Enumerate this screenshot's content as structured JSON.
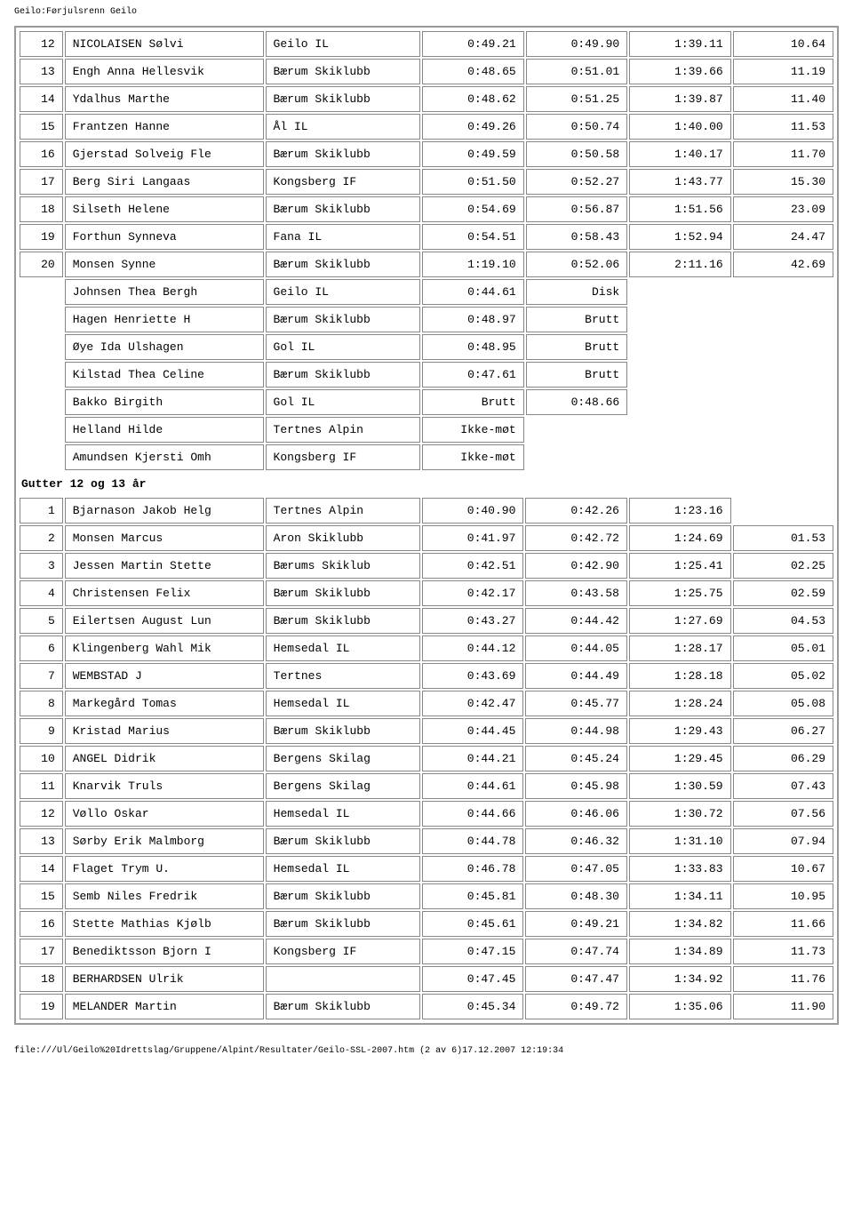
{
  "header": "Geilo:Førjulsrenn Geilo",
  "footer": "file:///Ul/Geilo%20Idrettslag/Gruppene/Alpint/Resultater/Geilo-SSL-2007.htm (2 av 6)17.12.2007 12:19:34",
  "group2_title": "Gutter 12 og 13 år",
  "rows1": [
    {
      "r": "12",
      "n": "NICOLAISEN Sølvi",
      "c": "Geilo IL",
      "t1": "0:49.21",
      "t2": "0:49.90",
      "t3": "1:39.11",
      "t4": "10.64"
    },
    {
      "r": "13",
      "n": "Engh Anna Hellesvik",
      "c": "Bærum Skiklubb",
      "t1": "0:48.65",
      "t2": "0:51.01",
      "t3": "1:39.66",
      "t4": "11.19"
    },
    {
      "r": "14",
      "n": "Ydalhus Marthe",
      "c": "Bærum Skiklubb",
      "t1": "0:48.62",
      "t2": "0:51.25",
      "t3": "1:39.87",
      "t4": "11.40"
    },
    {
      "r": "15",
      "n": "Frantzen Hanne",
      "c": "Ål IL",
      "t1": "0:49.26",
      "t2": "0:50.74",
      "t3": "1:40.00",
      "t4": "11.53"
    },
    {
      "r": "16",
      "n": "Gjerstad Solveig Fle",
      "c": "Bærum Skiklubb",
      "t1": "0:49.59",
      "t2": "0:50.58",
      "t3": "1:40.17",
      "t4": "11.70"
    },
    {
      "r": "17",
      "n": "Berg Siri Langaas",
      "c": "Kongsberg IF",
      "t1": "0:51.50",
      "t2": "0:52.27",
      "t3": "1:43.77",
      "t4": "15.30"
    },
    {
      "r": "18",
      "n": "Silseth Helene",
      "c": "Bærum Skiklubb",
      "t1": "0:54.69",
      "t2": "0:56.87",
      "t3": "1:51.56",
      "t4": "23.09"
    },
    {
      "r": "19",
      "n": "Forthun Synneva",
      "c": "Fana IL",
      "t1": "0:54.51",
      "t2": "0:58.43",
      "t3": "1:52.94",
      "t4": "24.47"
    },
    {
      "r": "20",
      "n": "Monsen Synne",
      "c": "Bærum Skiklubb",
      "t1": "1:19.10",
      "t2": "0:52.06",
      "t3": "2:11.16",
      "t4": "42.69"
    },
    {
      "r": "",
      "n": "Johnsen Thea Bergh",
      "c": "Geilo IL",
      "t1": "0:44.61",
      "t2": "Disk",
      "t3": "",
      "t4": ""
    },
    {
      "r": "",
      "n": "Hagen Henriette H",
      "c": "Bærum Skiklubb",
      "t1": "0:48.97",
      "t2": "Brutt",
      "t3": "",
      "t4": ""
    },
    {
      "r": "",
      "n": "Øye Ida Ulshagen",
      "c": "Gol IL",
      "t1": "0:48.95",
      "t2": "Brutt",
      "t3": "",
      "t4": ""
    },
    {
      "r": "",
      "n": "Kilstad Thea Celine",
      "c": "Bærum Skiklubb",
      "t1": "0:47.61",
      "t2": "Brutt",
      "t3": "",
      "t4": ""
    },
    {
      "r": "",
      "n": "Bakko Birgith",
      "c": "Gol IL",
      "t1": "Brutt",
      "t2": "0:48.66",
      "t3": "",
      "t4": ""
    },
    {
      "r": "",
      "n": "Helland Hilde",
      "c": "Tertnes Alpin",
      "t1": "Ikke-møt",
      "t2": "",
      "t3": "",
      "t4": ""
    },
    {
      "r": "",
      "n": "Amundsen Kjersti Omh",
      "c": "Kongsberg IF",
      "t1": "Ikke-møt",
      "t2": "",
      "t3": "",
      "t4": ""
    }
  ],
  "rows2": [
    {
      "r": "1",
      "n": "Bjarnason Jakob Helg",
      "c": "Tertnes Alpin",
      "t1": "0:40.90",
      "t2": "0:42.26",
      "t3": "1:23.16",
      "t4": ""
    },
    {
      "r": "2",
      "n": "Monsen Marcus",
      "c": "Aron Skiklubb",
      "t1": "0:41.97",
      "t2": "0:42.72",
      "t3": "1:24.69",
      "t4": "01.53"
    },
    {
      "r": "3",
      "n": "Jessen Martin Stette",
      "c": "Bærums Skiklub",
      "t1": "0:42.51",
      "t2": "0:42.90",
      "t3": "1:25.41",
      "t4": "02.25"
    },
    {
      "r": "4",
      "n": "Christensen Felix",
      "c": "Bærum Skiklubb",
      "t1": "0:42.17",
      "t2": "0:43.58",
      "t3": "1:25.75",
      "t4": "02.59"
    },
    {
      "r": "5",
      "n": "Eilertsen August Lun",
      "c": "Bærum Skiklubb",
      "t1": "0:43.27",
      "t2": "0:44.42",
      "t3": "1:27.69",
      "t4": "04.53"
    },
    {
      "r": "6",
      "n": "Klingenberg Wahl Mik",
      "c": "Hemsedal IL",
      "t1": "0:44.12",
      "t2": "0:44.05",
      "t3": "1:28.17",
      "t4": "05.01"
    },
    {
      "r": "7",
      "n": "WEMBSTAD J",
      "c": "Tertnes",
      "t1": "0:43.69",
      "t2": "0:44.49",
      "t3": "1:28.18",
      "t4": "05.02"
    },
    {
      "r": "8",
      "n": "Markegård Tomas",
      "c": "Hemsedal IL",
      "t1": "0:42.47",
      "t2": "0:45.77",
      "t3": "1:28.24",
      "t4": "05.08"
    },
    {
      "r": "9",
      "n": "Kristad Marius",
      "c": "Bærum Skiklubb",
      "t1": "0:44.45",
      "t2": "0:44.98",
      "t3": "1:29.43",
      "t4": "06.27"
    },
    {
      "r": "10",
      "n": "ANGEL Didrik",
      "c": "Bergens Skilag",
      "t1": "0:44.21",
      "t2": "0:45.24",
      "t3": "1:29.45",
      "t4": "06.29"
    },
    {
      "r": "11",
      "n": "Knarvik Truls",
      "c": "Bergens Skilag",
      "t1": "0:44.61",
      "t2": "0:45.98",
      "t3": "1:30.59",
      "t4": "07.43"
    },
    {
      "r": "12",
      "n": "Vøllo Oskar",
      "c": "Hemsedal IL",
      "t1": "0:44.66",
      "t2": "0:46.06",
      "t3": "1:30.72",
      "t4": "07.56"
    },
    {
      "r": "13",
      "n": "Sørby Erik Malmborg",
      "c": "Bærum Skiklubb",
      "t1": "0:44.78",
      "t2": "0:46.32",
      "t3": "1:31.10",
      "t4": "07.94"
    },
    {
      "r": "14",
      "n": "Flaget Trym U.",
      "c": "Hemsedal IL",
      "t1": "0:46.78",
      "t2": "0:47.05",
      "t3": "1:33.83",
      "t4": "10.67"
    },
    {
      "r": "15",
      "n": "Semb Niles Fredrik",
      "c": "Bærum Skiklubb",
      "t1": "0:45.81",
      "t2": "0:48.30",
      "t3": "1:34.11",
      "t4": "10.95"
    },
    {
      "r": "16",
      "n": "Stette Mathias Kjølb",
      "c": "Bærum Skiklubb",
      "t1": "0:45.61",
      "t2": "0:49.21",
      "t3": "1:34.82",
      "t4": "11.66"
    },
    {
      "r": "17",
      "n": "Benediktsson Bjorn I",
      "c": "Kongsberg IF",
      "t1": "0:47.15",
      "t2": "0:47.74",
      "t3": "1:34.89",
      "t4": "11.73"
    },
    {
      "r": "18",
      "n": "BERHARDSEN Ulrik",
      "c": "",
      "t1": "0:47.45",
      "t2": "0:47.47",
      "t3": "1:34.92",
      "t4": "11.76"
    },
    {
      "r": "19",
      "n": "MELANDER Martin",
      "c": "Bærum Skiklubb",
      "t1": "0:45.34",
      "t2": "0:49.72",
      "t3": "1:35.06",
      "t4": "11.90"
    }
  ]
}
